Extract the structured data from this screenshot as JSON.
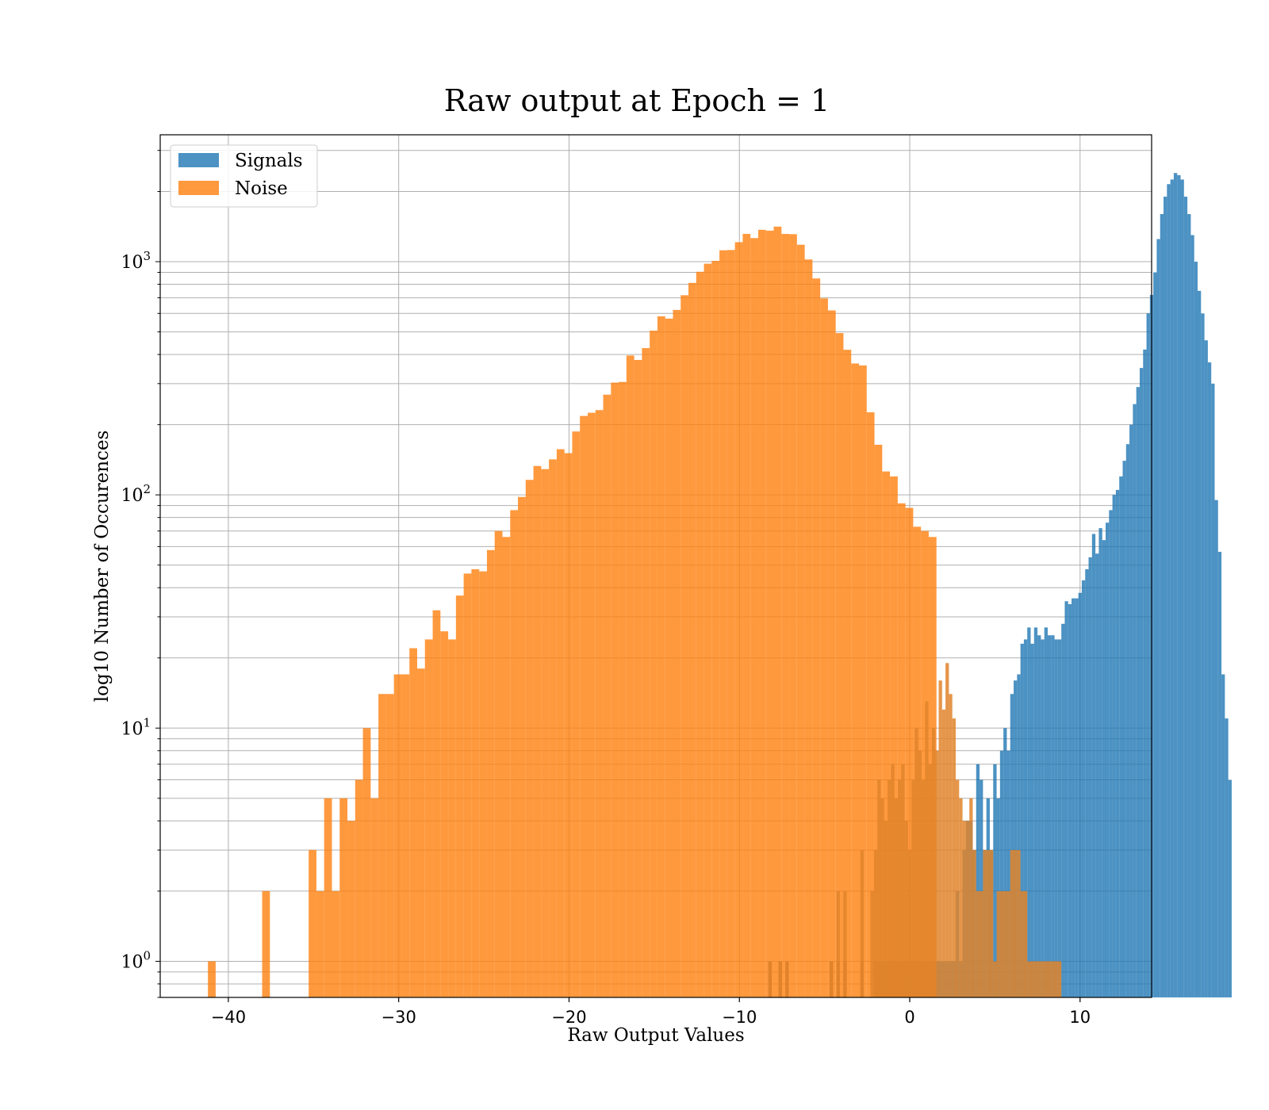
{
  "chart_data": {
    "type": "bar",
    "title": "Raw output at Epoch = 1",
    "xlabel": "Raw Output Values",
    "ylabel": "log10 Number of Occurences",
    "yscale": "log",
    "xlim": [
      -44.0,
      14.2
    ],
    "ylim": [
      0.7,
      3500
    ],
    "xticks": [
      -40,
      -30,
      -20,
      -10,
      0,
      10
    ],
    "xtick_labels": [
      "−40",
      "−30",
      "−20",
      "−10",
      "0",
      "10"
    ],
    "yticks": [
      1,
      10,
      100,
      1000
    ],
    "ytick_labels": [
      {
        "base": "10",
        "exp": "0"
      },
      {
        "base": "10",
        "exp": "1"
      },
      {
        "base": "10",
        "exp": "2"
      },
      {
        "base": "10",
        "exp": "3"
      }
    ],
    "grid": true,
    "legend_position": "upper-left",
    "series": [
      {
        "name": "Signals",
        "color": "#1f77b4",
        "bin_start": -8.3,
        "bin_width": 0.2,
        "values": [
          1,
          0,
          0,
          1,
          0,
          1,
          0,
          0,
          0,
          0,
          0,
          0,
          0,
          0,
          0,
          0,
          0,
          0,
          1,
          0,
          1,
          0,
          1,
          0,
          0,
          0,
          0,
          1,
          0,
          0,
          0,
          1,
          1,
          1,
          1,
          1,
          1,
          1,
          1,
          1,
          1,
          1,
          1,
          1,
          1,
          1,
          1,
          1,
          1,
          1,
          1,
          1,
          1,
          1,
          1,
          2,
          1,
          3,
          4,
          4,
          3,
          7,
          6,
          3,
          5,
          3,
          7,
          5,
          8,
          10,
          8,
          14,
          16,
          17,
          23,
          24,
          27,
          23,
          27,
          25,
          24,
          27,
          25,
          25,
          24,
          24,
          28,
          35,
          34,
          36,
          36,
          38,
          43,
          48,
          54,
          68,
          56,
          72,
          64,
          76,
          86,
          100,
          105,
          120,
          140,
          165,
          200,
          245,
          290,
          350,
          420,
          600,
          720,
          900,
          1250,
          1600,
          1900,
          2150,
          2250,
          2400,
          2350,
          2250,
          1900,
          1600,
          1300,
          1000,
          750,
          600,
          460,
          370,
          300,
          95,
          57,
          17,
          11,
          6
        ]
      },
      {
        "name": "Noise",
        "color": "#ff7f0e",
        "bin_start": -41.2,
        "bin_width": 0.455,
        "values": [
          1,
          0,
          0,
          0,
          0,
          0,
          0,
          2,
          0,
          0,
          0,
          0,
          0,
          3,
          2,
          5,
          2,
          5,
          4,
          6,
          10,
          5,
          14,
          14,
          17,
          17,
          22,
          18,
          24,
          32,
          26,
          24,
          37,
          46,
          48,
          47,
          58,
          70,
          66,
          86,
          98,
          116,
          133,
          129,
          142,
          157,
          151,
          187,
          218,
          225,
          231,
          269,
          303,
          305,
          396,
          379,
          426,
          506,
          583,
          570,
          621,
          718,
          811,
          905,
          980,
          1008,
          1119,
          1122,
          1212,
          1316,
          1262,
          1370,
          1358,
          1413,
          1315,
          1312,
          1182,
          1022,
          847,
          696,
          618,
          494,
          419,
          366,
          359,
          226,
          164,
          126,
          120,
          92,
          88,
          73,
          70,
          66,
          0,
          0,
          0,
          0,
          0,
          0,
          0,
          0,
          0,
          0,
          0,
          0,
          0,
          0,
          0,
          0,
          0,
          0
        ]
      },
      {
        "name": "",
        "color": "#e0842a",
        "bin_start": -8.3,
        "bin_width": 0.2,
        "values": [
          1,
          0,
          0,
          1,
          0,
          1,
          0,
          0,
          0,
          0,
          0,
          0,
          0,
          0,
          0,
          0,
          0,
          0,
          1,
          0,
          2,
          0,
          2,
          0,
          0,
          0,
          0,
          3,
          0,
          0,
          2,
          3,
          6,
          5,
          4,
          6,
          7,
          5,
          6,
          7,
          4,
          3,
          6,
          10,
          8,
          6,
          13,
          7,
          10,
          8,
          16,
          12,
          19,
          14,
          11,
          6,
          5,
          4,
          4,
          5,
          3,
          2,
          2,
          3,
          3,
          3,
          1,
          2,
          2,
          2,
          2,
          3,
          3,
          3,
          2,
          2,
          1,
          1,
          1,
          1,
          1,
          1,
          1,
          1,
          1,
          1,
          0,
          0,
          0,
          0
        ]
      }
    ]
  }
}
